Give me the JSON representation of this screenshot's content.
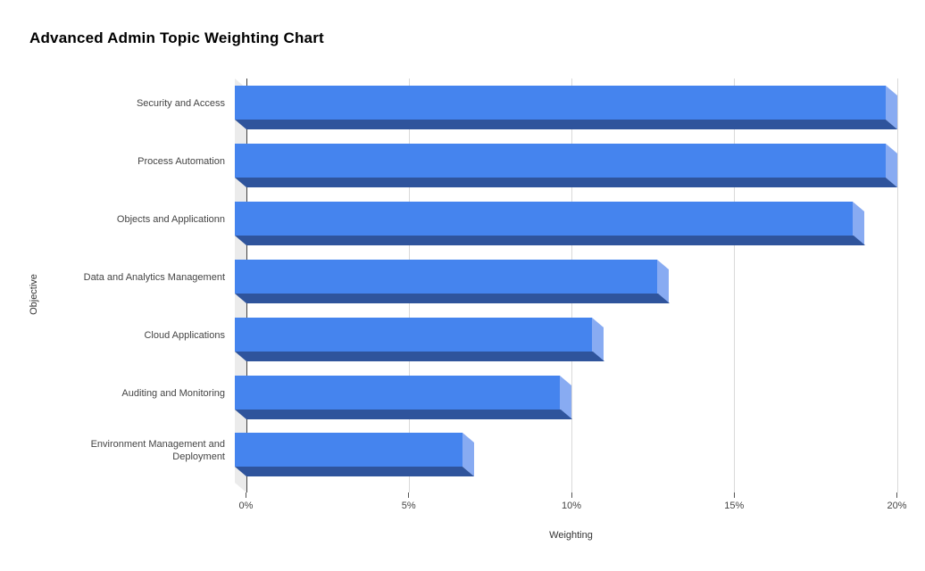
{
  "title": "Advanced Admin Topic Weighting Chart",
  "chart_data": {
    "type": "bar",
    "orientation": "horizontal",
    "style": "3d",
    "title": "Advanced Admin Topic Weighting Chart",
    "xlabel": "Weighting",
    "ylabel": "Objective",
    "categories": [
      "Security and Access",
      "Process Automation",
      "Objects and Applicationn",
      "Data and Analytics Management",
      "Cloud Applications",
      "Auditing and Monitoring",
      "Environment Management and Deployment"
    ],
    "values": [
      20,
      20,
      19,
      13,
      11,
      10,
      7
    ],
    "unit": "%",
    "xlim": [
      0,
      20
    ],
    "xticks": [
      {
        "value": 0,
        "label": "0%"
      },
      {
        "value": 5,
        "label": "5%"
      },
      {
        "value": 10,
        "label": "10%"
      },
      {
        "value": 15,
        "label": "15%"
      },
      {
        "value": 20,
        "label": "20%"
      }
    ],
    "grid": true,
    "legend": false,
    "colors": {
      "bar_face": "#4584ee",
      "bar_side_dark": "#2f549c",
      "bar_end_cap": "#88abf2",
      "axis_wall": "#ebebeb",
      "gridline": "#d9d9d9",
      "axis_line": "#424242",
      "tick": "#555555",
      "label_text": "#444444",
      "title_text": "#000000"
    }
  }
}
